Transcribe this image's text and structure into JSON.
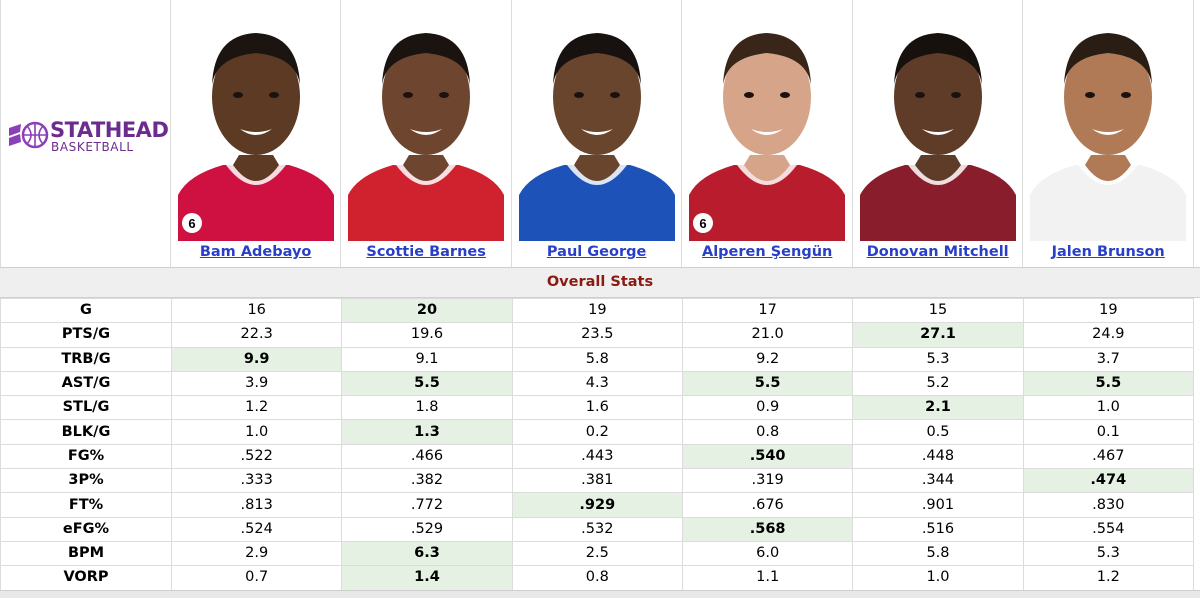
{
  "logo": {
    "line1": "STATHEAD",
    "line2": "BASKETBALL"
  },
  "section_title": "Overall Stats",
  "colors": {
    "link": "#2a3fc8",
    "section_title": "#8b1a10",
    "highlight": "#e5f1e3",
    "logo": "#6c2c8f"
  },
  "players": [
    {
      "name": "Bam Adebayo",
      "jersey": "#ce1141",
      "skin": "#5c3a24",
      "hair": "#1b1410",
      "number": "6"
    },
    {
      "name": "Scottie Barnes",
      "jersey": "#d0212e",
      "skin": "#6e4630",
      "hair": "#1a1310",
      "number": ""
    },
    {
      "name": "Paul George",
      "jersey": "#1d53b8",
      "skin": "#6a452d",
      "hair": "#171210",
      "number": ""
    },
    {
      "name": "Alperen Şengün",
      "jersey": "#b91c2c",
      "skin": "#d6a488",
      "hair": "#3a2618",
      "number": "6"
    },
    {
      "name": "Donovan Mitchell",
      "jersey": "#8a1d2c",
      "skin": "#5e3c28",
      "hair": "#17110e",
      "number": ""
    },
    {
      "name": "Jalen Brunson",
      "jersey": "#f2f2f2",
      "skin": "#b07a56",
      "hair": "#2a1d14",
      "number": ""
    }
  ],
  "rows": [
    {
      "label": "G",
      "values": [
        "16",
        "20",
        "19",
        "17",
        "15",
        "19"
      ],
      "best": [
        1
      ]
    },
    {
      "label": "PTS/G",
      "values": [
        "22.3",
        "19.6",
        "23.5",
        "21.0",
        "27.1",
        "24.9"
      ],
      "best": [
        4
      ]
    },
    {
      "label": "TRB/G",
      "values": [
        "9.9",
        "9.1",
        "5.8",
        "9.2",
        "5.3",
        "3.7"
      ],
      "best": [
        0
      ]
    },
    {
      "label": "AST/G",
      "values": [
        "3.9",
        "5.5",
        "4.3",
        "5.5",
        "5.2",
        "5.5"
      ],
      "best": [
        1,
        3,
        5
      ]
    },
    {
      "label": "STL/G",
      "values": [
        "1.2",
        "1.8",
        "1.6",
        "0.9",
        "2.1",
        "1.0"
      ],
      "best": [
        4
      ]
    },
    {
      "label": "BLK/G",
      "values": [
        "1.0",
        "1.3",
        "0.2",
        "0.8",
        "0.5",
        "0.1"
      ],
      "best": [
        1
      ]
    },
    {
      "label": "FG%",
      "values": [
        ".522",
        ".466",
        ".443",
        ".540",
        ".448",
        ".467"
      ],
      "best": [
        3
      ]
    },
    {
      "label": "3P%",
      "values": [
        ".333",
        ".382",
        ".381",
        ".319",
        ".344",
        ".474"
      ],
      "best": [
        5
      ]
    },
    {
      "label": "FT%",
      "values": [
        ".813",
        ".772",
        ".929",
        ".676",
        ".901",
        ".830"
      ],
      "best": [
        2
      ]
    },
    {
      "label": "eFG%",
      "values": [
        ".524",
        ".529",
        ".532",
        ".568",
        ".516",
        ".554"
      ],
      "best": [
        3
      ]
    },
    {
      "label": "BPM",
      "values": [
        "2.9",
        "6.3",
        "2.5",
        "6.0",
        "5.8",
        "5.3"
      ],
      "best": [
        1
      ]
    },
    {
      "label": "VORP",
      "values": [
        "0.7",
        "1.4",
        "0.8",
        "1.1",
        "1.0",
        "1.2"
      ],
      "best": [
        1
      ]
    }
  ]
}
